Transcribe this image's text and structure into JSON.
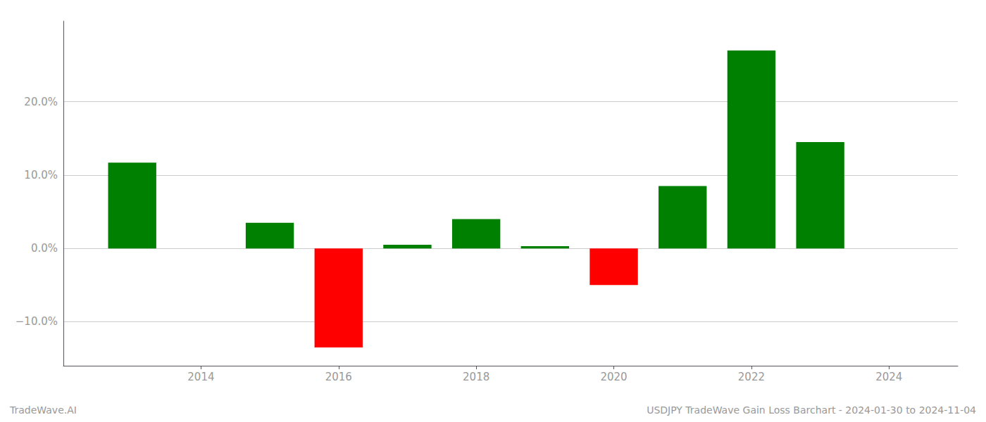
{
  "chart_data": {
    "type": "bar",
    "x": [
      2013,
      2015,
      2016,
      2017,
      2018,
      2019,
      2020,
      2021,
      2022,
      2023
    ],
    "values": [
      11.7,
      3.5,
      -13.5,
      0.5,
      4.0,
      0.3,
      -5.0,
      8.5,
      27.0,
      14.5
    ],
    "colors": [
      "#008000",
      "#008000",
      "#ff0000",
      "#008000",
      "#008000",
      "#008000",
      "#ff0000",
      "#008000",
      "#008000",
      "#008000"
    ],
    "xlim": [
      2012.0,
      2025.0
    ],
    "ylim": [
      -16,
      31
    ],
    "xticks": [
      2014,
      2016,
      2018,
      2020,
      2022,
      2024
    ],
    "yticks": [
      {
        "value": -10.0,
        "label": "−10.0%"
      },
      {
        "value": 0.0,
        "label": "0.0%"
      },
      {
        "value": 10.0,
        "label": "10.0%"
      },
      {
        "value": 20.0,
        "label": "20.0%"
      }
    ],
    "grid": true,
    "annotations": [
      "TradeWave.AI",
      "USDJPY TradeWave Gain Loss Barchart - 2024-01-30 to 2024-11-04"
    ]
  }
}
